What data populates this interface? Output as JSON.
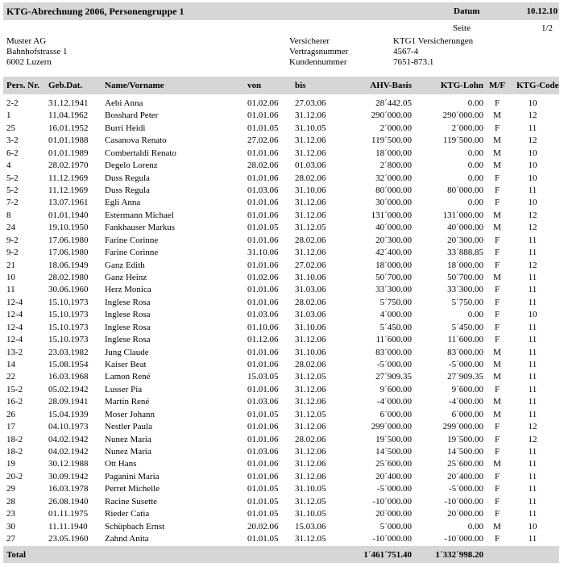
{
  "header": {
    "title": "KTG-Abrechnung 2006, Personengruppe 1",
    "date_label": "Datum",
    "date": "10.12.10",
    "page_label": "Seite",
    "page": "1/2"
  },
  "company": {
    "name": "Muster AG",
    "street": "Bahnhofstrasse 1",
    "city": "6002 Luzern"
  },
  "insurance": {
    "labels": [
      "Versicherer",
      "Vertragsnummer",
      "Kundennummer"
    ],
    "values": [
      "KTG1 Versicherungen",
      "4567-4",
      "7651-873.1"
    ]
  },
  "table": {
    "columns": [
      "Pers. Nr.",
      "Geb.Dat.",
      "Name/Vorname",
      "von",
      "bis",
      "AHV-Basis",
      "KTG-Lohn",
      "M/F",
      "KTG-Code"
    ],
    "rows": [
      [
        "2-2",
        "31.12.1941",
        "Aebi Anna",
        "01.02.06",
        "27.03.06",
        "28´442.05",
        "0.00",
        "F",
        "10"
      ],
      [
        "1",
        "11.04.1962",
        "Bosshard Peter",
        "01.01.06",
        "31.12.06",
        "290´000.00",
        "290´000.00",
        "M",
        "12"
      ],
      [
        "25",
        "16.01.1952",
        "Burri Heidi",
        "01.01.05",
        "31.10.05",
        "2´000.00",
        "2´000.00",
        "F",
        "11"
      ],
      [
        "3-2",
        "01.01.1988",
        "Casanova Renato",
        "27.02.06",
        "31.12.06",
        "119´500.00",
        "119´500.00",
        "M",
        "12"
      ],
      [
        "6-2",
        "01.01.1989",
        "Combertaldi Renato",
        "01.01.06",
        "31.12.06",
        "18´000.00",
        "0.00",
        "M",
        "10"
      ],
      [
        "4",
        "28.02.1970",
        "Degelo Lorenz",
        "28.02.06",
        "01.03.06",
        "2´800.00",
        "0.00",
        "M",
        "10"
      ],
      [
        "5-2",
        "11.12.1969",
        "Duss Regula",
        "01.01.06",
        "28.02.06",
        "32´000.00",
        "0.00",
        "F",
        "10"
      ],
      [
        "5-2",
        "11.12.1969",
        "Duss Regula",
        "01.03.06",
        "31.10.06",
        "80´000.00",
        "80´000.00",
        "F",
        "11"
      ],
      [
        "7-2",
        "13.07.1961",
        "Egli Anna",
        "01.01.06",
        "31.12.06",
        "30´000.00",
        "0.00",
        "F",
        "10"
      ],
      [
        "8",
        "01.01.1940",
        "Estermann Michael",
        "01.01.06",
        "31.12.06",
        "131´000.00",
        "131´000.00",
        "M",
        "12"
      ],
      [
        "24",
        "19.10.1950",
        "Fankhauser Markus",
        "01.01.05",
        "31.12.05",
        "40´000.00",
        "40´000.00",
        "M",
        "12"
      ],
      [
        "9-2",
        "17.06.1980",
        "Farine Corinne",
        "01.01.06",
        "28.02.06",
        "20´300.00",
        "20´300.00",
        "F",
        "11"
      ],
      [
        "9-2",
        "17.06.1980",
        "Farine Corinne",
        "31.10.06",
        "31.12.06",
        "42´400.00",
        "33´888.85",
        "F",
        "11"
      ],
      [
        "21",
        "18.06.1949",
        "Ganz Edith",
        "01.01.06",
        "27.02.06",
        "18´000.00",
        "18´000.00",
        "F",
        "12"
      ],
      [
        "10",
        "28.02.1980",
        "Ganz Heinz",
        "01.02.06",
        "31.10.06",
        "50´700.00",
        "50´700.00",
        "M",
        "11"
      ],
      [
        "11",
        "30.06.1960",
        "Herz Monica",
        "01.01.06",
        "31.03.06",
        "33´300.00",
        "33´300.00",
        "F",
        "11"
      ],
      [
        "12-4",
        "15.10.1973",
        "Inglese Rosa",
        "01.01.06",
        "28.02.06",
        "5´750.00",
        "5´750.00",
        "F",
        "11"
      ],
      [
        "12-4",
        "15.10.1973",
        "Inglese Rosa",
        "01.03.06",
        "31.03.06",
        "4´000.00",
        "0.00",
        "F",
        "10"
      ],
      [
        "12-4",
        "15.10.1973",
        "Inglese Rosa",
        "01.10.06",
        "31.10.06",
        "5´450.00",
        "5´450.00",
        "F",
        "11"
      ],
      [
        "12-4",
        "15.10.1973",
        "Inglese Rosa",
        "01.12.06",
        "31.12.06",
        "11´600.00",
        "11´600.00",
        "F",
        "11"
      ],
      [
        "13-2",
        "23.03.1982",
        "Jung Claude",
        "01.01.06",
        "31.10.06",
        "83´000.00",
        "83´000.00",
        "M",
        "11"
      ],
      [
        "14",
        "15.08.1954",
        "Kaiser Beat",
        "01.01.06",
        "28.02.06",
        "-5´000.00",
        "-5´000.00",
        "M",
        "11"
      ],
      [
        "22",
        "16.03.1968",
        "Lamon René",
        "15.03.05",
        "31.12.05",
        "27´909.35",
        "27´909.35",
        "M",
        "11"
      ],
      [
        "15-2",
        "05.02.1942",
        "Lusser Pia",
        "01.01.06",
        "31.12.06",
        "9´600.00",
        "9´600.00",
        "F",
        "11"
      ],
      [
        "16-2",
        "28.09.1941",
        "Martin René",
        "01.03.06",
        "31.12.06",
        "-4´000.00",
        "-4´000.00",
        "M",
        "11"
      ],
      [
        "26",
        "15.04.1939",
        "Moser Johann",
        "01.01.05",
        "31.12.05",
        "6´000.00",
        "6´000.00",
        "M",
        "11"
      ],
      [
        "17",
        "04.10.1973",
        "Nestler Paula",
        "01.01.06",
        "31.12.06",
        "299´000.00",
        "299´000.00",
        "F",
        "12"
      ],
      [
        "18-2",
        "04.02.1942",
        "Nunez Maria",
        "01.01.06",
        "28.02.06",
        "19´500.00",
        "19´500.00",
        "F",
        "12"
      ],
      [
        "18-2",
        "04.02.1942",
        "Nunez Maria",
        "01.03.06",
        "31.12.06",
        "14´500.00",
        "14´500.00",
        "F",
        "11"
      ],
      [
        "19",
        "30.12.1988",
        "Ott Hans",
        "01.01.06",
        "31.12.06",
        "25´600.00",
        "25´600.00",
        "M",
        "11"
      ],
      [
        "20-2",
        "30.09.1942",
        "Paganini Maria",
        "01.01.06",
        "31.12.06",
        "20´400.00",
        "20´400.00",
        "F",
        "11"
      ],
      [
        "29",
        "16.03.1978",
        "Perret Michelle",
        "01.01.05",
        "31.10.05",
        "-5´000.00",
        "-5´000.00",
        "F",
        "11"
      ],
      [
        "28",
        "26.08.1940",
        "Racine Susette",
        "01.01.05",
        "31.12.05",
        "-10´000.00",
        "-10´000.00",
        "F",
        "11"
      ],
      [
        "23",
        "01.11.1975",
        "Rieder Catia",
        "01.01.05",
        "31.10.05",
        "20´000.00",
        "20´000.00",
        "F",
        "11"
      ],
      [
        "30",
        "11.11.1940",
        "Schüpbach Ernst",
        "20.02.06",
        "15.03.06",
        "5´000.00",
        "0.00",
        "M",
        "10"
      ],
      [
        "27",
        "23.05.1960",
        "Zahnd Anita",
        "01.01.05",
        "31.12.05",
        "-10´000.00",
        "-10´000.00",
        "F",
        "11"
      ]
    ],
    "total": {
      "label": "Total",
      "ahv": "1´461´751.40",
      "ktg": "1´332´998.20"
    }
  }
}
